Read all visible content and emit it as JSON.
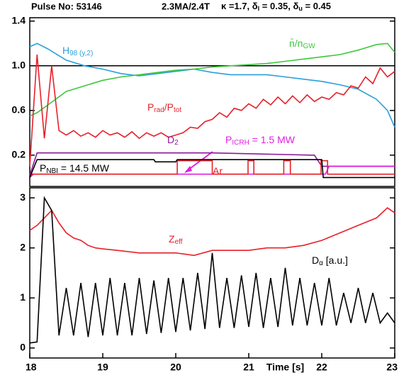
{
  "chart_data": [
    {
      "type": "line",
      "title": "Pulse No: 53146",
      "subtitle": "2.3MA/2.4T",
      "parameters": [
        {
          "text": "κ =1.7, δ"
        },
        {
          "sub": "l"
        },
        {
          "text": " = 0.35, δ"
        },
        {
          "sub": "u"
        },
        {
          "text": " = 0.45"
        }
      ],
      "xlim": [
        18,
        23
      ],
      "ylim": [
        -0.08,
        1.43
      ],
      "yticks": [
        0.2,
        0.6,
        {
          "value": 1,
          "label": "1.0"
        },
        1.4
      ],
      "reference_lines": [
        1
      ],
      "series": [
        {
          "label": [
            {
              "text": "H"
            },
            {
              "sub": "98 (y,2)"
            }
          ],
          "color": "#2a9fd8",
          "x": [
            18,
            18.1,
            18.25,
            18.5,
            18.75,
            19,
            19.25,
            19.5,
            19.75,
            20,
            20.25,
            20.5,
            20.75,
            21,
            21.25,
            21.5,
            21.75,
            22,
            22.25,
            22.5,
            22.75,
            22.9,
            23
          ],
          "values": [
            1.17,
            1.2,
            1.15,
            1.05,
            1.0,
            0.97,
            0.93,
            0.91,
            0.93,
            0.95,
            0.97,
            0.94,
            0.92,
            0.92,
            0.92,
            0.9,
            0.88,
            0.86,
            0.83,
            0.79,
            0.7,
            0.6,
            0.45
          ]
        },
        {
          "label": [
            {
              "text": "n̄/n"
            },
            {
              "sub": "GW"
            }
          ],
          "color": "#3cc83c",
          "x": [
            18,
            18.1,
            18.25,
            18.5,
            18.75,
            19,
            19.25,
            19.5,
            19.75,
            20,
            20.25,
            20.5,
            20.75,
            21,
            21.25,
            21.5,
            21.75,
            22,
            22.25,
            22.5,
            22.75,
            22.9,
            23
          ],
          "values": [
            0.55,
            0.58,
            0.65,
            0.77,
            0.82,
            0.87,
            0.9,
            0.92,
            0.94,
            0.96,
            0.97,
            0.99,
            1.0,
            1.01,
            1.02,
            1.04,
            1.06,
            1.08,
            1.1,
            1.14,
            1.19,
            1.2,
            1.12
          ]
        },
        {
          "label": [
            {
              "text": "P"
            },
            {
              "sub": "rad"
            },
            {
              "text": "/P"
            },
            {
              "sub": "tot"
            }
          ],
          "color": "#e8202a",
          "x": [
            18,
            18.1,
            18.2,
            18.3,
            18.4,
            18.5,
            18.6,
            18.7,
            18.8,
            18.9,
            19,
            19.1,
            19.2,
            19.3,
            19.4,
            19.5,
            19.6,
            19.7,
            19.8,
            19.9,
            20,
            20.1,
            20.2,
            20.3,
            20.4,
            20.5,
            20.6,
            20.7,
            20.8,
            20.9,
            21,
            21.1,
            21.2,
            21.3,
            21.4,
            21.5,
            21.6,
            21.7,
            21.8,
            21.9,
            22,
            22.1,
            22.2,
            22.3,
            22.4,
            22.5,
            22.6,
            22.7,
            22.8,
            22.9,
            23
          ],
          "values": [
            0.1,
            1.1,
            0.35,
            1.0,
            0.42,
            0.38,
            0.42,
            0.37,
            0.4,
            0.36,
            0.42,
            0.38,
            0.4,
            0.36,
            0.41,
            0.35,
            0.4,
            0.37,
            0.4,
            0.36,
            0.38,
            0.4,
            0.45,
            0.44,
            0.5,
            0.52,
            0.58,
            0.54,
            0.62,
            0.6,
            0.66,
            0.62,
            0.7,
            0.65,
            0.72,
            0.66,
            0.73,
            0.67,
            0.74,
            0.68,
            0.72,
            0.7,
            0.76,
            0.74,
            0.82,
            0.8,
            0.9,
            0.84,
            0.98,
            0.9,
            0.95
          ]
        },
        {
          "label": [
            {
              "text": "D"
            },
            {
              "sub": "2"
            }
          ],
          "color": "#8a1a9a",
          "x": [
            18,
            18.1,
            20.5,
            21.9,
            22,
            23
          ],
          "values": [
            0.02,
            0.22,
            0.22,
            0.2,
            0.1,
            0.1
          ]
        },
        {
          "label": [
            {
              "text": "P"
            },
            {
              "sub": "ICRH"
            },
            {
              "text": " = 1.5 MW"
            }
          ],
          "color": "#e020e0",
          "x": [
            18,
            18.05,
            22.05,
            22.1,
            23
          ],
          "values": [
            0,
            0.03,
            0.03,
            0.1,
            0.1
          ]
        },
        {
          "label": [
            {
              "text": "Ar"
            }
          ],
          "color": "#e8202a",
          "x": [
            18,
            20.02,
            20.02,
            20.5,
            20.5,
            20.99,
            20.99,
            21.07,
            21.07,
            21.48,
            21.48,
            21.57,
            21.57,
            21.99,
            21.99,
            22.08,
            22.08,
            23
          ],
          "values": [
            0.03,
            0.03,
            0.15,
            0.15,
            0.03,
            0.03,
            0.15,
            0.15,
            0.03,
            0.03,
            0.15,
            0.15,
            0.03,
            0.03,
            0.15,
            0.15,
            0.03,
            0.03
          ]
        },
        {
          "label": [
            {
              "text": "P"
            },
            {
              "sub": "NBI"
            },
            {
              "text": " = 14.5 MW"
            }
          ],
          "color": "#000000",
          "x": [
            18,
            18.1,
            19.7,
            19.72,
            20,
            20.02,
            22,
            22.02,
            23
          ],
          "values": [
            0,
            0.16,
            0.16,
            0.14,
            0.14,
            0.16,
            0.16,
            0,
            0
          ]
        }
      ]
    },
    {
      "type": "line",
      "xlim": [
        18,
        23
      ],
      "xticks": [
        18,
        19,
        20,
        21,
        22,
        23
      ],
      "xlabel": "Time [s]",
      "ylim": [
        -0.2,
        3.2
      ],
      "yticks": [
        0,
        1,
        2,
        3
      ],
      "series": [
        {
          "label": [
            {
              "text": "Z"
            },
            {
              "sub": "eff"
            }
          ],
          "color": "#e8202a",
          "x": [
            18,
            18.1,
            18.2,
            18.3,
            18.4,
            18.5,
            18.6,
            18.7,
            18.8,
            18.9,
            19,
            19.2,
            19.5,
            19.75,
            20,
            20.25,
            20.5,
            20.75,
            21,
            21.25,
            21.5,
            21.75,
            22,
            22.25,
            22.5,
            22.75,
            22.9,
            23
          ],
          "values": [
            2.35,
            2.45,
            2.6,
            2.75,
            2.5,
            2.3,
            2.2,
            2.15,
            2.05,
            2.0,
            1.98,
            1.95,
            1.9,
            1.9,
            1.9,
            1.85,
            1.95,
            1.95,
            1.95,
            2.0,
            2.0,
            2.05,
            2.15,
            2.3,
            2.45,
            2.6,
            2.8,
            2.7
          ]
        },
        {
          "label": [
            {
              "text": "D"
            },
            {
              "sub": "α"
            },
            {
              "text": "  [a.u.]"
            }
          ],
          "color": "#000000",
          "x": [
            18,
            18.1,
            18.2,
            18.3,
            18.4,
            18.5,
            18.6,
            18.7,
            18.8,
            18.9,
            19,
            19.1,
            19.2,
            19.3,
            19.4,
            19.5,
            19.6,
            19.7,
            19.8,
            19.9,
            20,
            20.1,
            20.2,
            20.3,
            20.4,
            20.5,
            20.6,
            20.7,
            20.8,
            20.9,
            21,
            21.1,
            21.2,
            21.3,
            21.4,
            21.5,
            21.6,
            21.7,
            21.8,
            21.9,
            22,
            22.1,
            22.2,
            22.3,
            22.4,
            22.5,
            22.6,
            22.7,
            22.8,
            22.9,
            23
          ],
          "values": [
            0.1,
            0.12,
            3.0,
            2.75,
            0.25,
            1.2,
            0.25,
            1.3,
            0.22,
            1.3,
            0.25,
            1.4,
            0.25,
            1.3,
            0.25,
            1.4,
            0.28,
            1.35,
            0.3,
            1.4,
            0.32,
            1.4,
            0.35,
            1.5,
            0.38,
            1.9,
            0.4,
            1.4,
            0.4,
            1.45,
            0.42,
            1.5,
            0.4,
            1.4,
            0.42,
            1.6,
            0.45,
            1.4,
            0.45,
            1.3,
            0.45,
            1.4,
            0.45,
            1.1,
            0.5,
            1.2,
            0.5,
            1.1,
            0.5,
            0.7,
            0.5
          ]
        }
      ]
    }
  ]
}
